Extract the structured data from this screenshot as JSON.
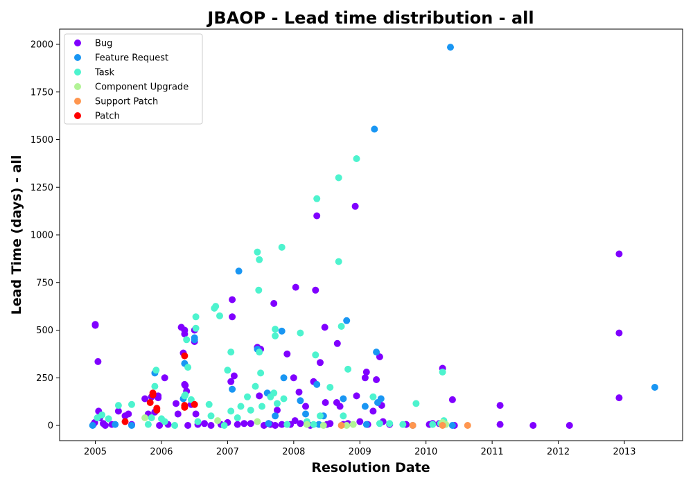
{
  "chart_data": {
    "type": "scatter",
    "title": "JBAOP - Lead time distribution - all",
    "xlabel": "Resolution Date",
    "ylabel": "Lead Time (days) - all",
    "xlim": [
      2004.46,
      2013.88
    ],
    "ylim": [
      -80,
      2080
    ],
    "x_ticks": [
      2005,
      2006,
      2007,
      2008,
      2009,
      2010,
      2011,
      2012,
      2013
    ],
    "y_ticks": [
      0,
      250,
      500,
      750,
      1000,
      1250,
      1500,
      1750,
      2000
    ],
    "legend_position": "top-left",
    "grid": false,
    "series": [
      {
        "name": "Bug",
        "color": "#8000ff",
        "points": [
          [
            2004.97,
            5
          ],
          [
            2004.99,
            15
          ],
          [
            2005.0,
            530
          ],
          [
            2005.0,
            525
          ],
          [
            2005.04,
            335
          ],
          [
            2005.05,
            75
          ],
          [
            2005.07,
            40
          ],
          [
            2005.12,
            10
          ],
          [
            2005.15,
            0
          ],
          [
            2005.25,
            5
          ],
          [
            2005.35,
            75
          ],
          [
            2005.45,
            50
          ],
          [
            2005.5,
            60
          ],
          [
            2005.55,
            5
          ],
          [
            2005.75,
            140
          ],
          [
            2005.8,
            60
          ],
          [
            2005.85,
            150
          ],
          [
            2005.9,
            70
          ],
          [
            2005.95,
            155
          ],
          [
            2005.95,
            145
          ],
          [
            2005.97,
            0
          ],
          [
            2006.05,
            250
          ],
          [
            2006.1,
            5
          ],
          [
            2006.22,
            115
          ],
          [
            2006.25,
            60
          ],
          [
            2006.3,
            515
          ],
          [
            2006.33,
            380
          ],
          [
            2006.35,
            480
          ],
          [
            2006.35,
            500
          ],
          [
            2006.35,
            215
          ],
          [
            2006.36,
            210
          ],
          [
            2006.38,
            180
          ],
          [
            2006.4,
            0
          ],
          [
            2006.45,
            110
          ],
          [
            2006.5,
            500
          ],
          [
            2006.5,
            440
          ],
          [
            2006.52,
            60
          ],
          [
            2006.55,
            5
          ],
          [
            2006.65,
            10
          ],
          [
            2006.75,
            0
          ],
          [
            2006.9,
            5
          ],
          [
            2007.0,
            15
          ],
          [
            2007.05,
            230
          ],
          [
            2007.07,
            570
          ],
          [
            2007.07,
            660
          ],
          [
            2007.1,
            260
          ],
          [
            2007.15,
            5
          ],
          [
            2007.25,
            10
          ],
          [
            2007.35,
            10
          ],
          [
            2007.45,
            410
          ],
          [
            2007.48,
            155
          ],
          [
            2007.5,
            400
          ],
          [
            2007.55,
            0
          ],
          [
            2007.62,
            10
          ],
          [
            2007.65,
            5
          ],
          [
            2007.7,
            640
          ],
          [
            2007.72,
            0
          ],
          [
            2007.75,
            80
          ],
          [
            2007.82,
            5
          ],
          [
            2007.9,
            375
          ],
          [
            2007.95,
            5
          ],
          [
            2008.0,
            250
          ],
          [
            2008.02,
            25
          ],
          [
            2008.03,
            725
          ],
          [
            2008.08,
            175
          ],
          [
            2008.1,
            10
          ],
          [
            2008.18,
            100
          ],
          [
            2008.2,
            10
          ],
          [
            2008.25,
            0
          ],
          [
            2008.3,
            230
          ],
          [
            2008.33,
            710
          ],
          [
            2008.35,
            1100
          ],
          [
            2008.4,
            330
          ],
          [
            2008.47,
            515
          ],
          [
            2008.48,
            120
          ],
          [
            2008.5,
            5
          ],
          [
            2008.55,
            10
          ],
          [
            2008.65,
            120
          ],
          [
            2008.66,
            430
          ],
          [
            2008.7,
            100
          ],
          [
            2008.75,
            5
          ],
          [
            2008.82,
            10
          ],
          [
            2008.93,
            1150
          ],
          [
            2008.95,
            155
          ],
          [
            2009.0,
            20
          ],
          [
            2009.08,
            250
          ],
          [
            2009.1,
            280
          ],
          [
            2009.12,
            5
          ],
          [
            2009.2,
            75
          ],
          [
            2009.25,
            240
          ],
          [
            2009.3,
            360
          ],
          [
            2009.33,
            105
          ],
          [
            2009.35,
            20
          ],
          [
            2009.45,
            5
          ],
          [
            2009.7,
            5
          ],
          [
            2010.05,
            5
          ],
          [
            2010.1,
            10
          ],
          [
            2010.2,
            10
          ],
          [
            2010.25,
            300
          ],
          [
            2010.4,
            135
          ],
          [
            2010.43,
            0
          ],
          [
            2011.12,
            105
          ],
          [
            2011.12,
            5
          ],
          [
            2011.62,
            0
          ],
          [
            2012.17,
            0
          ],
          [
            2012.92,
            900
          ],
          [
            2012.92,
            485
          ],
          [
            2012.92,
            145
          ]
        ]
      },
      {
        "name": "Feature Request",
        "color": "#1996f3",
        "points": [
          [
            2004.96,
            0
          ],
          [
            2005.3,
            5
          ],
          [
            2005.55,
            0
          ],
          [
            2005.9,
            275
          ],
          [
            2006.33,
            140
          ],
          [
            2006.35,
            325
          ],
          [
            2006.5,
            450
          ],
          [
            2006.5,
            460
          ],
          [
            2007.07,
            190
          ],
          [
            2007.17,
            810
          ],
          [
            2007.45,
            400
          ],
          [
            2007.6,
            170
          ],
          [
            2007.62,
            10
          ],
          [
            2007.72,
            50
          ],
          [
            2007.82,
            495
          ],
          [
            2007.85,
            250
          ],
          [
            2008.1,
            130
          ],
          [
            2008.18,
            60
          ],
          [
            2008.35,
            215
          ],
          [
            2008.38,
            5
          ],
          [
            2008.45,
            50
          ],
          [
            2008.75,
            140
          ],
          [
            2008.8,
            550
          ],
          [
            2009.08,
            100
          ],
          [
            2009.1,
            5
          ],
          [
            2009.22,
            1555
          ],
          [
            2009.25,
            385
          ],
          [
            2009.27,
            120
          ],
          [
            2009.32,
            140
          ],
          [
            2009.8,
            0
          ],
          [
            2010.37,
            1985
          ],
          [
            2010.4,
            0
          ],
          [
            2013.46,
            200
          ]
        ]
      },
      {
        "name": "Task",
        "color": "#4df3ce",
        "points": [
          [
            2005.03,
            40
          ],
          [
            2005.1,
            55
          ],
          [
            2005.2,
            35
          ],
          [
            2005.35,
            105
          ],
          [
            2005.55,
            110
          ],
          [
            2005.8,
            5
          ],
          [
            2005.85,
            40
          ],
          [
            2005.9,
            205
          ],
          [
            2005.92,
            290
          ],
          [
            2006.0,
            35
          ],
          [
            2006.05,
            20
          ],
          [
            2006.2,
            0
          ],
          [
            2006.35,
            155
          ],
          [
            2006.36,
            160
          ],
          [
            2006.38,
            450
          ],
          [
            2006.4,
            305
          ],
          [
            2006.45,
            135
          ],
          [
            2006.52,
            570
          ],
          [
            2006.52,
            510
          ],
          [
            2006.55,
            20
          ],
          [
            2006.72,
            110
          ],
          [
            2006.75,
            50
          ],
          [
            2006.8,
            615
          ],
          [
            2006.82,
            625
          ],
          [
            2006.88,
            575
          ],
          [
            2006.95,
            0
          ],
          [
            2007.0,
            290
          ],
          [
            2007.05,
            385
          ],
          [
            2007.05,
            75
          ],
          [
            2007.15,
            40
          ],
          [
            2007.2,
            100
          ],
          [
            2007.3,
            150
          ],
          [
            2007.35,
            80
          ],
          [
            2007.42,
            205
          ],
          [
            2007.45,
            910
          ],
          [
            2007.47,
            710
          ],
          [
            2007.48,
            870
          ],
          [
            2007.48,
            385
          ],
          [
            2007.5,
            275
          ],
          [
            2007.52,
            100
          ],
          [
            2007.65,
            150
          ],
          [
            2007.7,
            170
          ],
          [
            2007.72,
            470
          ],
          [
            2007.72,
            505
          ],
          [
            2007.75,
            115
          ],
          [
            2007.82,
            935
          ],
          [
            2007.85,
            140
          ],
          [
            2007.9,
            5
          ],
          [
            2008.1,
            485
          ],
          [
            2008.2,
            20
          ],
          [
            2008.3,
            5
          ],
          [
            2008.33,
            370
          ],
          [
            2008.35,
            1190
          ],
          [
            2008.4,
            50
          ],
          [
            2008.55,
            200
          ],
          [
            2008.68,
            860
          ],
          [
            2008.68,
            1300
          ],
          [
            2008.72,
            520
          ],
          [
            2008.75,
            50
          ],
          [
            2008.82,
            295
          ],
          [
            2008.95,
            1400
          ],
          [
            2009.2,
            150
          ],
          [
            2009.3,
            10
          ],
          [
            2009.45,
            10
          ],
          [
            2009.65,
            5
          ],
          [
            2009.85,
            115
          ],
          [
            2010.1,
            5
          ],
          [
            2010.22,
            10
          ],
          [
            2010.25,
            280
          ],
          [
            2010.27,
            25
          ]
        ]
      },
      {
        "name": "Component  Upgrade",
        "color": "#b2f396",
        "points": [
          [
            2005.75,
            40
          ],
          [
            2006.85,
            25
          ],
          [
            2007.45,
            20
          ],
          [
            2008.2,
            5
          ],
          [
            2008.45,
            0
          ],
          [
            2008.8,
            0
          ],
          [
            2008.9,
            5
          ],
          [
            2010.25,
            15
          ],
          [
            2010.3,
            5
          ]
        ]
      },
      {
        "name": "Support Patch",
        "color": "#ff964f",
        "points": [
          [
            2008.72,
            0
          ],
          [
            2009.8,
            0
          ],
          [
            2010.25,
            0
          ],
          [
            2010.63,
            0
          ]
        ]
      },
      {
        "name": "Patch",
        "color": "#ff0000",
        "points": [
          [
            2005.45,
            20
          ],
          [
            2005.83,
            120
          ],
          [
            2005.87,
            160
          ],
          [
            2005.87,
            170
          ],
          [
            2005.93,
            90
          ],
          [
            2005.93,
            80
          ],
          [
            2006.35,
            365
          ],
          [
            2006.35,
            105
          ],
          [
            2006.35,
            95
          ],
          [
            2006.5,
            110
          ]
        ]
      }
    ]
  }
}
